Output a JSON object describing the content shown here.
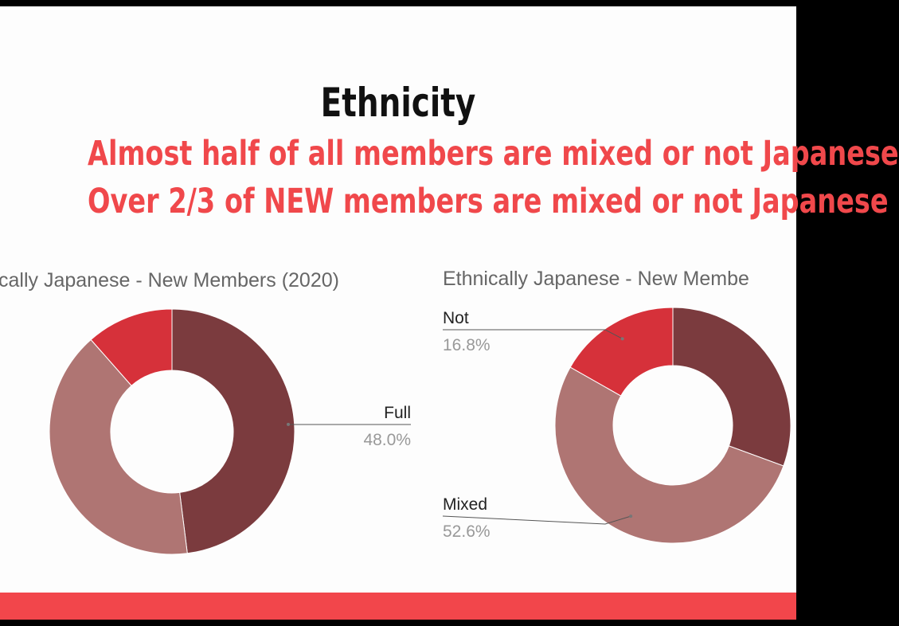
{
  "slide": {
    "title": "Ethnicity",
    "subtitle_lines": [
      "Almost half of all members are mixed or not Japanese",
      "Over 2/3 of NEW members are mixed or not Japanese"
    ]
  },
  "colors": {
    "full": "#7b3b3e",
    "mixed": "#af7573",
    "not": "#d6313a",
    "accent": "#f2464b",
    "title_text": "#111111",
    "subtitle_text": "#f0484b"
  },
  "chart_data": [
    {
      "type": "pie",
      "donut": true,
      "title": "cally Japanese - New Members (2020)",
      "slices": [
        {
          "label": "Full",
          "value": 48.0,
          "pct_label": "48.0%",
          "color": "#7b3b3e"
        },
        {
          "label": "",
          "value": 40.5,
          "pct_label": "",
          "color": "#af7573"
        },
        {
          "label": "",
          "value": 11.5,
          "pct_label": "",
          "color": "#d6313a"
        }
      ],
      "start_angle": 0,
      "clockwise": true,
      "legend": "none"
    },
    {
      "type": "pie",
      "donut": true,
      "title": "Ethnically Japanese - New Membe",
      "slices": [
        {
          "label": "",
          "value": 30.6,
          "pct_label": "",
          "color": "#7b3b3e"
        },
        {
          "label": "Mixed",
          "value": 52.6,
          "pct_label": "52.6%",
          "color": "#af7573"
        },
        {
          "label": "Not",
          "value": 16.8,
          "pct_label": "16.8%",
          "color": "#d6313a"
        }
      ],
      "start_angle": 0,
      "clockwise": true,
      "legend": "none"
    }
  ]
}
